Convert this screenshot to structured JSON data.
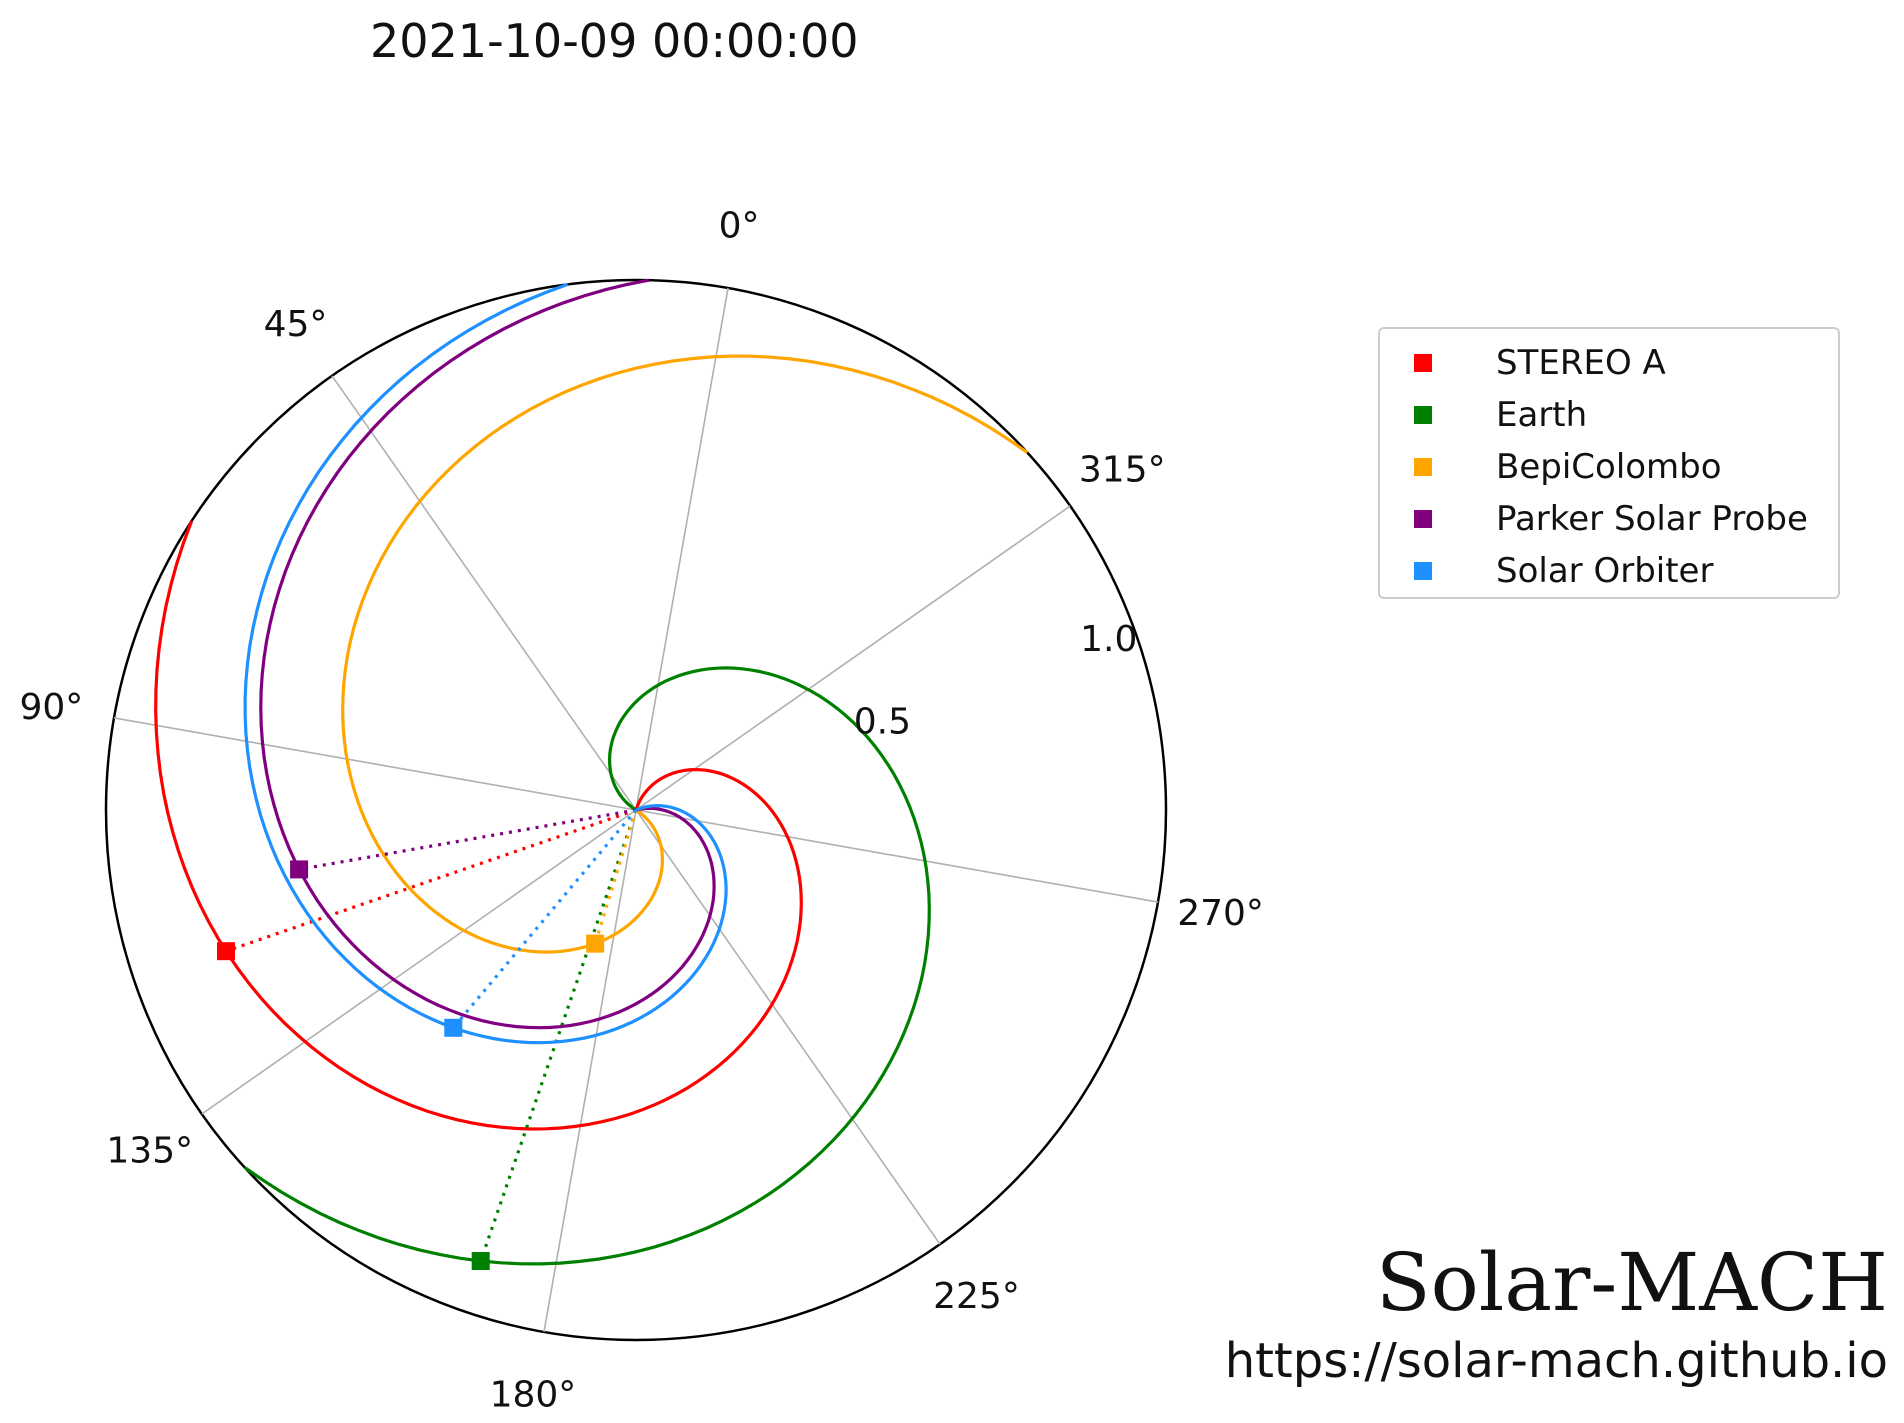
{
  "title": "2021-10-09 00:00:00",
  "brand": {
    "name": "Solar-MACH",
    "url": "https://solar-mach.github.io"
  },
  "chart_data": {
    "type": "polar",
    "theta_tick_labels": [
      "0°",
      "45°",
      "90°",
      "135°",
      "180°",
      "225°",
      "270°",
      "315°"
    ],
    "radial_tick_labels": [
      "0.5",
      "1.0"
    ],
    "rlim": [
      0,
      1.1
    ],
    "grid": true,
    "legend_position": "right",
    "series": [
      {
        "name": "STEREO A",
        "color": "#ff0000",
        "theta_deg": 119,
        "r": 0.9
      },
      {
        "name": "Earth",
        "color": "#008000",
        "theta_deg": 171,
        "r": 0.99
      },
      {
        "name": "BepiColombo",
        "color": "#ffa500",
        "theta_deg": 173,
        "r": 0.29
      },
      {
        "name": "Parker Solar Probe",
        "color": "#800080",
        "theta_deg": 110,
        "r": 0.71
      },
      {
        "name": "Solar Orbiter",
        "color": "#1e90ff",
        "theta_deg": 150,
        "r": 0.59
      }
    ]
  }
}
